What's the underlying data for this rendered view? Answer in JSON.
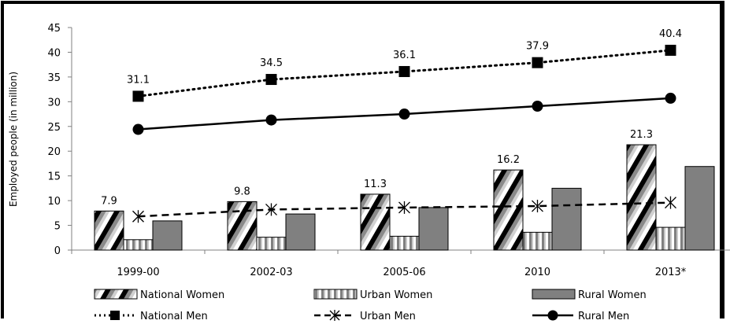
{
  "chart_data": {
    "type": "bar",
    "title": "",
    "xlabel": "",
    "ylabel": "Employed people (in million)",
    "ylim": [
      0,
      45
    ],
    "yticks": [
      0,
      5,
      10,
      15,
      20,
      25,
      30,
      35,
      40,
      45
    ],
    "categories": [
      "1999-00",
      "2002-03",
      "2005-06",
      "2010",
      "2013*"
    ],
    "grid": false,
    "legend_position": "bottom",
    "bar_series": [
      {
        "name": "National Women",
        "values": [
          7.9,
          9.8,
          11.3,
          16.2,
          21.3
        ],
        "labels": [
          "7.9",
          "9.8",
          "11.3",
          "16.2",
          "21.3"
        ],
        "style": "diagonal-stripes"
      },
      {
        "name": "Urban Women",
        "values": [
          2.1,
          2.6,
          2.8,
          3.6,
          4.6
        ],
        "style": "vertical-stripes"
      },
      {
        "name": "Rural Women",
        "values": [
          5.9,
          7.3,
          8.6,
          12.5,
          16.9
        ],
        "style": "solid-gray",
        "color": "#808080"
      }
    ],
    "line_series": [
      {
        "name": "National Men",
        "values": [
          31.1,
          34.5,
          36.1,
          37.9,
          40.4
        ],
        "labels": [
          "31.1",
          "34.5",
          "36.1",
          "37.9",
          "40.4"
        ],
        "line": "dotted",
        "marker": "square"
      },
      {
        "name": "Urban Men",
        "values": [
          6.8,
          8.2,
          8.6,
          8.9,
          9.6
        ],
        "line": "dashed",
        "marker": "star"
      },
      {
        "name": "Rural Men",
        "values": [
          24.4,
          26.3,
          27.5,
          29.1,
          30.7
        ],
        "line": "solid",
        "marker": "circle"
      }
    ]
  }
}
